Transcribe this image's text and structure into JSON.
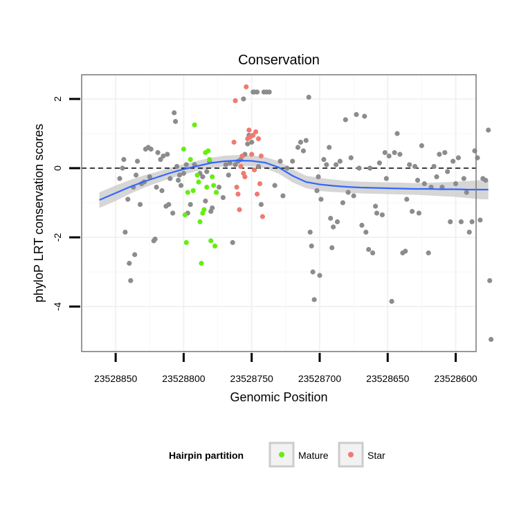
{
  "chart_data": {
    "type": "scatter",
    "title": "Conservation",
    "xlabel": "Genomic Position",
    "ylabel": "phyloP LRT conservation scores",
    "x_reversed": true,
    "xlim": [
      23528875,
      23528585
    ],
    "ylim": [
      -5.3,
      2.7
    ],
    "x_ticks": [
      23528850,
      23528800,
      23528750,
      23528700,
      23528650,
      23528600
    ],
    "x_tick_labels": [
      "23528850",
      "23528800",
      "23528750",
      "23528700",
      "23528650",
      "23528600"
    ],
    "y_ticks": [
      -4,
      -2,
      0,
      2
    ],
    "y_tick_labels": [
      "-4",
      "-2",
      "0",
      "2"
    ],
    "grid": true,
    "reference_line": {
      "y": 0,
      "style": "dashed"
    },
    "legend": {
      "title": "Hairpin partition",
      "position": "bottom",
      "entries": [
        {
          "label": "Mature",
          "color": "#66ee11"
        },
        {
          "label": "Star",
          "color": "#f07a70"
        }
      ]
    },
    "colors": {
      "other": "#8c8c8c",
      "smooth": "#3366ff",
      "band": "#cfcfcf"
    },
    "series": [
      {
        "group": "other",
        "color": "#8c8c8c",
        "points": [
          [
            23528847,
            -0.3
          ],
          [
            23528845,
            0.0
          ],
          [
            23528844,
            0.25
          ],
          [
            23528843,
            -1.85
          ],
          [
            23528841,
            -0.9
          ],
          [
            23528840,
            -2.75
          ],
          [
            23528839,
            -3.25
          ],
          [
            23528837,
            -0.55
          ],
          [
            23528836,
            -2.5
          ],
          [
            23528835,
            -0.2
          ],
          [
            23528834,
            0.2
          ],
          [
            23528832,
            -1.05
          ],
          [
            23528831,
            -0.45
          ],
          [
            23528829,
            -0.4
          ],
          [
            23528828,
            0.55
          ],
          [
            23528826,
            0.6
          ],
          [
            23528825,
            -0.25
          ],
          [
            23528824,
            0.55
          ],
          [
            23528822,
            -2.1
          ],
          [
            23528821,
            -2.05
          ],
          [
            23528820,
            -0.55
          ],
          [
            23528819,
            0.45
          ],
          [
            23528817,
            0.25
          ],
          [
            23528816,
            -0.65
          ],
          [
            23528815,
            0.35
          ],
          [
            23528813,
            -1.1
          ],
          [
            23528812,
            0.4
          ],
          [
            23528811,
            -1.05
          ],
          [
            23528810,
            -0.3
          ],
          [
            23528808,
            -1.3
          ],
          [
            23528807,
            1.6
          ],
          [
            23528806,
            1.35
          ],
          [
            23528805,
            0.05
          ],
          [
            23528804,
            -0.35
          ],
          [
            23528803,
            -0.2
          ],
          [
            23528802,
            -0.5
          ],
          [
            23528800,
            -0.15
          ],
          [
            23528798,
            0.1
          ],
          [
            23528797,
            -1.3
          ],
          [
            23528795,
            -1.05
          ],
          [
            23528792,
            0.1
          ],
          [
            23528788,
            -0.15
          ],
          [
            23528786,
            -0.25
          ],
          [
            23528784,
            -0.95
          ],
          [
            23528783,
            -0.1
          ],
          [
            23528781,
            0.2
          ],
          [
            23528780,
            -1.25
          ],
          [
            23528779,
            -1.15
          ],
          [
            23528776,
            -0.7
          ],
          [
            23528774,
            -0.55
          ],
          [
            23528771,
            -0.85
          ],
          [
            23528769,
            0.1
          ],
          [
            23528767,
            -0.2
          ],
          [
            23528766,
            0.15
          ],
          [
            23528764,
            -2.15
          ],
          [
            23528762,
            0.1
          ],
          [
            23528760,
            0.2
          ],
          [
            23528758,
            0.25
          ],
          [
            23528756,
            2.0
          ],
          [
            23528755,
            0.4
          ],
          [
            23528753,
            0.7
          ],
          [
            23528752,
            0.95
          ],
          [
            23528750,
            0.75
          ],
          [
            23528749,
            2.2
          ],
          [
            23528748,
            2.2
          ],
          [
            23528746,
            2.2
          ],
          [
            23528745,
            0.05
          ],
          [
            23528743,
            -1.05
          ],
          [
            23528741,
            2.2
          ],
          [
            23528739,
            2.2
          ],
          [
            23528737,
            2.2
          ],
          [
            23528733,
            -0.5
          ],
          [
            23528729,
            0.2
          ],
          [
            23528727,
            -0.8
          ],
          [
            23528724,
            0.0
          ],
          [
            23528720,
            0.2
          ],
          [
            23528716,
            0.6
          ],
          [
            23528714,
            0.75
          ],
          [
            23528712,
            0.5
          ],
          [
            23528710,
            0.8
          ],
          [
            23528708,
            2.05
          ],
          [
            23528707,
            -1.85
          ],
          [
            23528706,
            -2.25
          ],
          [
            23528705,
            -3.0
          ],
          [
            23528704,
            -3.8
          ],
          [
            23528702,
            -0.65
          ],
          [
            23528701,
            -0.25
          ],
          [
            23528700,
            -3.1
          ],
          [
            23528699,
            -0.9
          ],
          [
            23528697,
            0.25
          ],
          [
            23528695,
            0.1
          ],
          [
            23528693,
            0.6
          ],
          [
            23528692,
            -1.45
          ],
          [
            23528691,
            -2.3
          ],
          [
            23528690,
            -1.7
          ],
          [
            23528688,
            0.1
          ],
          [
            23528687,
            -1.55
          ],
          [
            23528685,
            0.2
          ],
          [
            23528683,
            -1.0
          ],
          [
            23528681,
            1.4
          ],
          [
            23528679,
            -0.7
          ],
          [
            23528677,
            0.3
          ],
          [
            23528675,
            -0.8
          ],
          [
            23528673,
            1.55
          ],
          [
            23528671,
            0.0
          ],
          [
            23528669,
            -1.65
          ],
          [
            23528667,
            1.5
          ],
          [
            23528666,
            -1.85
          ],
          [
            23528664,
            -2.35
          ],
          [
            23528663,
            0.0
          ],
          [
            23528661,
            -2.45
          ],
          [
            23528659,
            -1.1
          ],
          [
            23528658,
            -1.3
          ],
          [
            23528656,
            0.15
          ],
          [
            23528654,
            -1.35
          ],
          [
            23528652,
            0.45
          ],
          [
            23528651,
            -0.3
          ],
          [
            23528649,
            0.35
          ],
          [
            23528647,
            -3.85
          ],
          [
            23528645,
            0.45
          ],
          [
            23528643,
            1.0
          ],
          [
            23528641,
            0.4
          ],
          [
            23528639,
            -2.45
          ],
          [
            23528637,
            -2.4
          ],
          [
            23528636,
            -0.9
          ],
          [
            23528634,
            0.1
          ],
          [
            23528632,
            -1.25
          ],
          [
            23528630,
            0.05
          ],
          [
            23528628,
            -0.35
          ],
          [
            23528627,
            -1.3
          ],
          [
            23528625,
            0.65
          ],
          [
            23528623,
            -0.45
          ],
          [
            23528620,
            -2.45
          ],
          [
            23528618,
            -0.55
          ],
          [
            23528616,
            0.05
          ],
          [
            23528614,
            -0.25
          ],
          [
            23528612,
            0.4
          ],
          [
            23528610,
            -0.55
          ],
          [
            23528608,
            0.45
          ],
          [
            23528606,
            -0.1
          ],
          [
            23528604,
            -1.55
          ],
          [
            23528602,
            0.2
          ],
          [
            23528600,
            -0.45
          ],
          [
            23528598,
            0.3
          ],
          [
            23528596,
            -1.55
          ],
          [
            23528594,
            -0.3
          ],
          [
            23528592,
            -0.7
          ],
          [
            23528590,
            -1.85
          ],
          [
            23528588,
            -1.55
          ],
          [
            23528586,
            0.5
          ],
          [
            23528584,
            0.3
          ],
          [
            23528582,
            -1.5
          ],
          [
            23528580,
            -0.3
          ],
          [
            23528578,
            -0.35
          ],
          [
            23528576,
            1.1
          ],
          [
            23528575,
            -3.25
          ],
          [
            23528574,
            -4.95
          ]
        ]
      },
      {
        "group": "Mature",
        "color": "#66ee11",
        "points": [
          [
            23528800,
            0.55
          ],
          [
            23528799,
            -1.35
          ],
          [
            23528798,
            -2.15
          ],
          [
            23528797,
            -0.7
          ],
          [
            23528795,
            0.25
          ],
          [
            23528793,
            -0.65
          ],
          [
            23528792,
            1.25
          ],
          [
            23528790,
            -0.2
          ],
          [
            23528789,
            -0.4
          ],
          [
            23528788,
            -1.55
          ],
          [
            23528787,
            -2.75
          ],
          [
            23528786,
            -1.3
          ],
          [
            23528785,
            -1.2
          ],
          [
            23528784,
            0.45
          ],
          [
            23528783,
            -0.55
          ],
          [
            23528782,
            0.5
          ],
          [
            23528781,
            0.25
          ],
          [
            23528780,
            -2.1
          ],
          [
            23528779,
            -0.25
          ],
          [
            23528778,
            -0.5
          ],
          [
            23528777,
            -2.25
          ],
          [
            23528776,
            -0.7
          ]
        ]
      },
      {
        "group": "Star",
        "color": "#f07a70",
        "points": [
          [
            23528763,
            0.75
          ],
          [
            23528762,
            1.95
          ],
          [
            23528761,
            -0.55
          ],
          [
            23528760,
            -0.75
          ],
          [
            23528759,
            -1.2
          ],
          [
            23528758,
            0.05
          ],
          [
            23528757,
            0.35
          ],
          [
            23528756,
            -0.15
          ],
          [
            23528755,
            -0.25
          ],
          [
            23528754,
            2.35
          ],
          [
            23528753,
            0.85
          ],
          [
            23528752,
            1.1
          ],
          [
            23528751,
            0.9
          ],
          [
            23528750,
            0.4
          ],
          [
            23528749,
            0.95
          ],
          [
            23528748,
            -0.05
          ],
          [
            23528747,
            1.05
          ],
          [
            23528746,
            -0.75
          ],
          [
            23528745,
            0.85
          ],
          [
            23528744,
            -0.45
          ],
          [
            23528743,
            0.35
          ],
          [
            23528742,
            -1.4
          ]
        ]
      }
    ],
    "smooth": {
      "x": [
        23528862,
        23528850,
        23528840,
        23528830,
        23528820,
        23528810,
        23528800,
        23528790,
        23528780,
        23528770,
        23528760,
        23528750,
        23528740,
        23528730,
        23528720,
        23528710,
        23528700,
        23528690,
        23528680,
        23528670,
        23528660,
        23528650,
        23528640,
        23528630,
        23528620,
        23528610,
        23528600,
        23528590,
        23528580,
        23528576
      ],
      "y": [
        -0.92,
        -0.72,
        -0.55,
        -0.4,
        -0.27,
        -0.14,
        -0.03,
        0.06,
        0.15,
        0.2,
        0.22,
        0.21,
        0.16,
        0.02,
        -0.22,
        -0.4,
        -0.47,
        -0.51,
        -0.54,
        -0.56,
        -0.57,
        -0.58,
        -0.59,
        -0.6,
        -0.6,
        -0.61,
        -0.61,
        -0.62,
        -0.62,
        -0.62
      ],
      "lower": [
        -1.15,
        -0.95,
        -0.75,
        -0.58,
        -0.43,
        -0.3,
        -0.18,
        -0.08,
        0.0,
        0.05,
        0.06,
        0.05,
        0.0,
        -0.16,
        -0.41,
        -0.58,
        -0.66,
        -0.69,
        -0.71,
        -0.73,
        -0.74,
        -0.75,
        -0.76,
        -0.77,
        -0.79,
        -0.81,
        -0.83,
        -0.87,
        -0.9,
        -0.9
      ],
      "upper": [
        -0.7,
        -0.5,
        -0.35,
        -0.22,
        -0.11,
        0.01,
        0.12,
        0.21,
        0.3,
        0.36,
        0.38,
        0.37,
        0.32,
        0.2,
        -0.03,
        -0.22,
        -0.28,
        -0.33,
        -0.37,
        -0.39,
        -0.4,
        -0.41,
        -0.42,
        -0.43,
        -0.42,
        -0.41,
        -0.39,
        -0.37,
        -0.34,
        -0.34
      ]
    }
  }
}
